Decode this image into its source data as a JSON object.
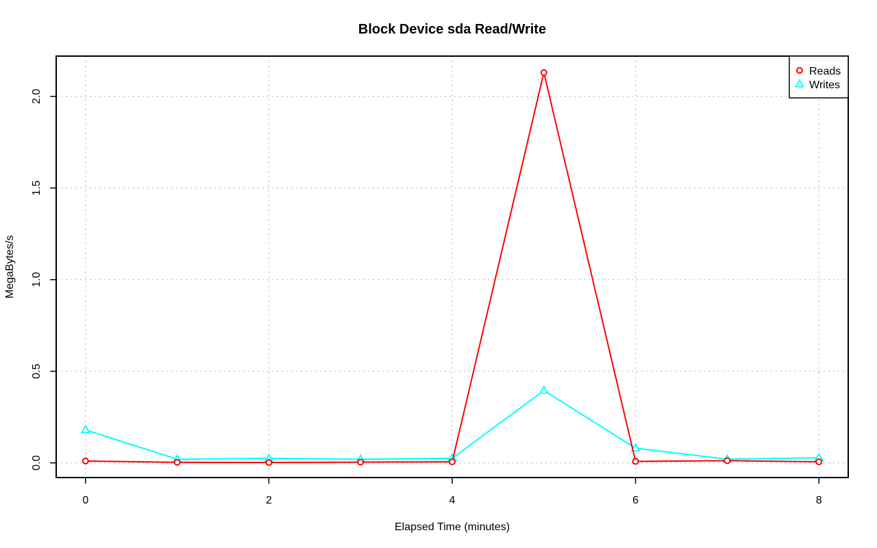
{
  "chart_data": {
    "type": "line",
    "title": "Block Device sda Read/Write",
    "xlabel": "Elapsed Time (minutes)",
    "ylabel": "MegaBytes/s",
    "xlim": [
      -0.32,
      8.32
    ],
    "ylim": [
      -0.08,
      2.22
    ],
    "x_ticks": [
      0,
      2,
      4,
      6,
      8
    ],
    "y_ticks": [
      0.0,
      0.5,
      1.0,
      1.5,
      2.0
    ],
    "x_tick_labels": [
      "0",
      "2",
      "4",
      "6",
      "8"
    ],
    "y_tick_labels": [
      "0.0",
      "0.5",
      "1.0",
      "1.5",
      "2.0"
    ],
    "grid": true,
    "legend_position": "top-right",
    "x": [
      0,
      1,
      2,
      3,
      4,
      5,
      6,
      7,
      8
    ],
    "series": [
      {
        "name": "Reads",
        "color": "#ff0000",
        "marker": "circle",
        "values": [
          0.01,
          0.003,
          0.002,
          0.004,
          0.006,
          2.13,
          0.008,
          0.012,
          0.006
        ]
      },
      {
        "name": "Writes",
        "color": "#00ffff",
        "marker": "triangle",
        "values": [
          0.18,
          0.02,
          0.025,
          0.02,
          0.025,
          0.395,
          0.08,
          0.02,
          0.028
        ]
      }
    ]
  }
}
